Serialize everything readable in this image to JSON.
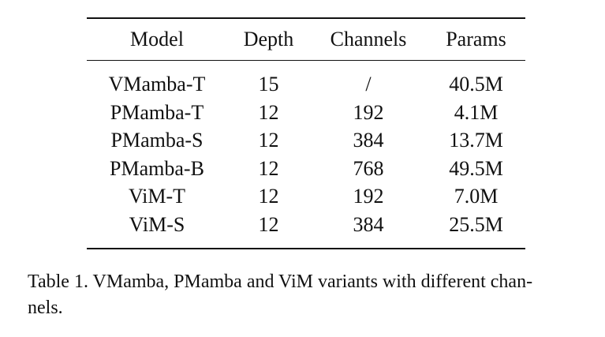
{
  "table": {
    "headers": [
      "Model",
      "Depth",
      "Channels",
      "Params"
    ],
    "rows": [
      [
        "VMamba-T",
        "15",
        "/",
        "40.5M"
      ],
      [
        "PMamba-T",
        "12",
        "192",
        "4.1M"
      ],
      [
        "PMamba-S",
        "12",
        "384",
        "13.7M"
      ],
      [
        "PMamba-B",
        "12",
        "768",
        "49.5M"
      ],
      [
        "ViM-T",
        "12",
        "192",
        "7.0M"
      ],
      [
        "ViM-S",
        "12",
        "384",
        "25.5M"
      ]
    ]
  },
  "caption": {
    "line1": "Table 1. VMamba, PMamba and ViM variants with different chan-",
    "line2": "nels."
  }
}
